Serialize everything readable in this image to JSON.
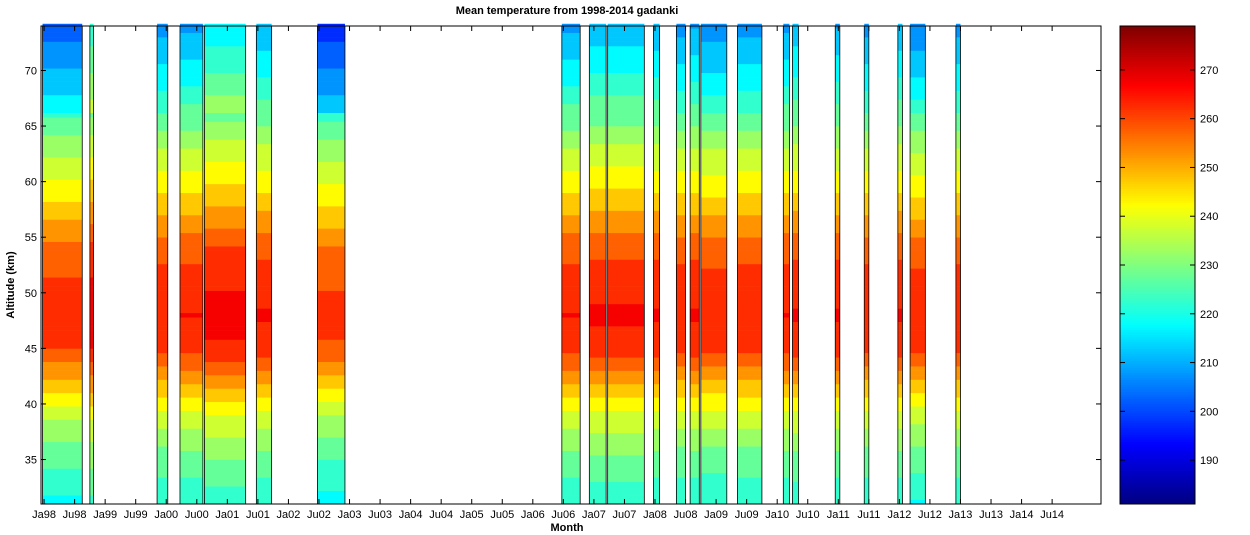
{
  "chart_data": {
    "type": "heatmap",
    "title": "Mean temperature from 1998-2014 gadanki",
    "xlabel": "Month",
    "ylabel": "Altitude (km)",
    "x_tick_labels": [
      "Ja98",
      "Ju98",
      "Ja99",
      "Ju99",
      "Ja00",
      "Ju00",
      "Ja01",
      "Ju01",
      "Ja02",
      "Ju02",
      "Ja03",
      "Ju03",
      "Ja04",
      "Ju04",
      "Ja05",
      "Ju05",
      "Ja06",
      "Ju06",
      "Ja07",
      "Ju07",
      "Ja08",
      "Ju08",
      "Ja09",
      "Ju09",
      "Ja10",
      "Ju10",
      "Ja11",
      "Ju11",
      "Ja12",
      "Ju12",
      "Ja13",
      "Ju13",
      "Ja14",
      "Ju14"
    ],
    "xlim": [
      0,
      34.7
    ],
    "y_ticks": [
      35,
      40,
      45,
      50,
      55,
      60,
      65,
      70
    ],
    "ylim": [
      31,
      74
    ],
    "colorbar": {
      "ticks": [
        190,
        200,
        210,
        220,
        230,
        240,
        250,
        260,
        270
      ],
      "range": [
        181,
        279
      ],
      "colormap": "jet"
    },
    "grid": false,
    "profile": [
      {
        "altitude": 31,
        "temperature": 220
      },
      {
        "altitude": 33,
        "temperature": 224
      },
      {
        "altitude": 36,
        "temperature": 230
      },
      {
        "altitude": 39,
        "temperature": 238
      },
      {
        "altitude": 42,
        "temperature": 250
      },
      {
        "altitude": 45,
        "temperature": 262
      },
      {
        "altitude": 48,
        "temperature": 265
      },
      {
        "altitude": 51,
        "temperature": 262
      },
      {
        "altitude": 54,
        "temperature": 258
      },
      {
        "altitude": 57,
        "temperature": 250
      },
      {
        "altitude": 60,
        "temperature": 242
      },
      {
        "altitude": 63,
        "temperature": 235
      },
      {
        "altitude": 66,
        "temperature": 226
      },
      {
        "altitude": 69,
        "temperature": 218
      },
      {
        "altitude": 72,
        "temperature": 212
      },
      {
        "altitude": 74,
        "temperature": 208
      }
    ],
    "data_segments": [
      {
        "start": 0.05,
        "end": 1.35,
        "offset": -10
      },
      {
        "start": 1.6,
        "end": 1.72,
        "offset": 22
      },
      {
        "start": 3.8,
        "end": 4.15,
        "offset": 0
      },
      {
        "start": 4.55,
        "end": 5.3,
        "offset": 2
      },
      {
        "start": 5.35,
        "end": 6.7,
        "offset": 14
      },
      {
        "start": 7.05,
        "end": 7.55,
        "offset": 4
      },
      {
        "start": 9.05,
        "end": 9.95,
        "offset": -18
      },
      {
        "start": 17.05,
        "end": 17.65,
        "offset": 2
      },
      {
        "start": 17.95,
        "end": 18.5,
        "offset": 6
      },
      {
        "start": 18.55,
        "end": 19.75,
        "offset": 6
      },
      {
        "start": 20.05,
        "end": 20.25,
        "offset": 4
      },
      {
        "start": 20.8,
        "end": 21.1,
        "offset": 0
      },
      {
        "start": 21.25,
        "end": 21.55,
        "offset": 3
      },
      {
        "start": 21.6,
        "end": 22.45,
        "offset": -2
      },
      {
        "start": 22.8,
        "end": 23.6,
        "offset": 0
      },
      {
        "start": 24.3,
        "end": 24.5,
        "offset": 2
      },
      {
        "start": 24.6,
        "end": 24.8,
        "offset": 5
      },
      {
        "start": 26.0,
        "end": 26.15,
        "offset": 3
      },
      {
        "start": 26.95,
        "end": 27.1,
        "offset": 0
      },
      {
        "start": 28.05,
        "end": 28.2,
        "offset": 4
      },
      {
        "start": 28.45,
        "end": 28.95,
        "offset": -4
      },
      {
        "start": 29.95,
        "end": 30.1,
        "offset": 0
      }
    ]
  }
}
